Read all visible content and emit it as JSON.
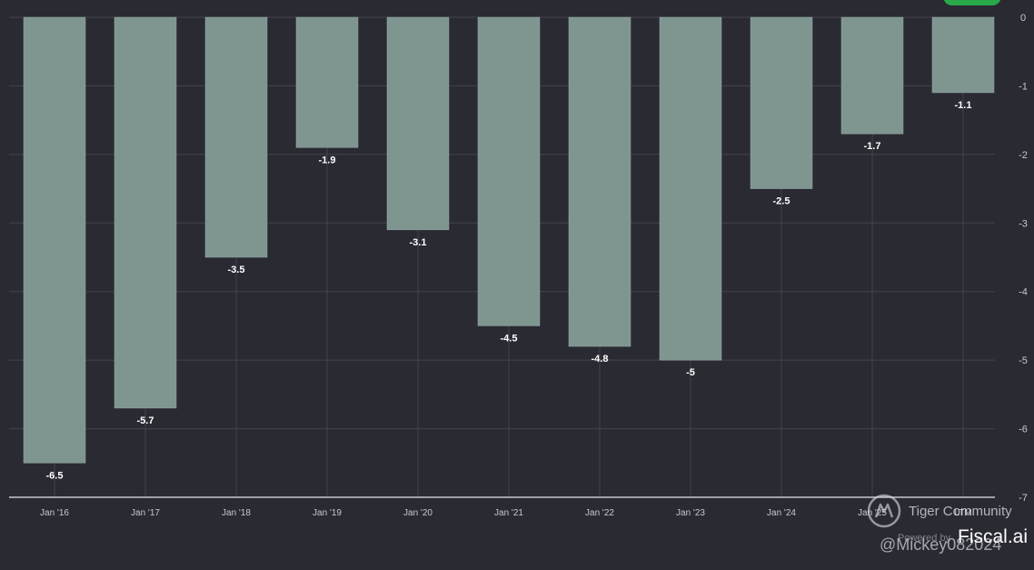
{
  "chart_data": {
    "type": "bar",
    "categories": [
      "Jan '16",
      "Jan '17",
      "Jan '18",
      "Jan '19",
      "Jan '20",
      "Jan '21",
      "Jan '22",
      "Jan '23",
      "Jan '24",
      "Jan '25",
      "LTM"
    ],
    "values": [
      -6.5,
      -5.7,
      -3.5,
      -1.9,
      -3.1,
      -4.5,
      -4.8,
      -5,
      -2.5,
      -1.7,
      -1.1
    ],
    "value_labels": [
      "-6.5",
      "-5.7",
      "-3.5",
      "-1.9",
      "-3.1",
      "-4.5",
      "-4.8",
      "-5",
      "-2.5",
      "-1.7",
      "-1.1"
    ],
    "yticks": [
      0,
      -1,
      -2,
      -3,
      -4,
      -5,
      -6,
      -7
    ],
    "ylim": [
      -7,
      0
    ],
    "y_axis_position": "right",
    "grid": true,
    "title": "",
    "xlabel": "",
    "ylabel": "",
    "colors": {
      "background": "#2a2a33",
      "bar": "#7f9590",
      "grid": "#43434c",
      "axis_text": "#c8c8cc",
      "label_text": "#ffffff"
    }
  },
  "watermark": {
    "brand": "Tiger Community",
    "powered_by": "Powered by",
    "fiscal": "Fiscal.ai",
    "user": "@Mickey082024",
    "logo_icon": "tiger-logo-icon"
  }
}
